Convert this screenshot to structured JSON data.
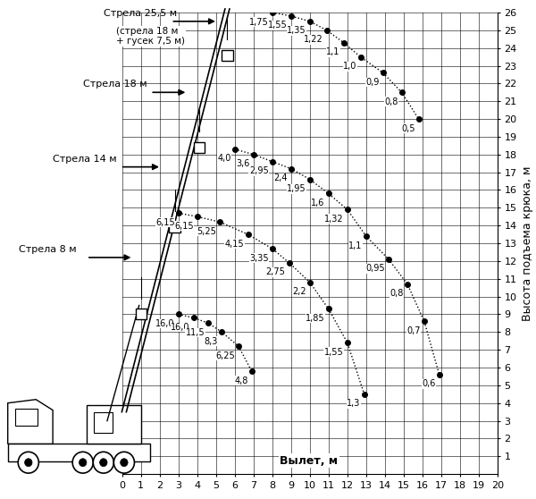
{
  "chart_data": {
    "type": "line",
    "x_label": "Вылет, м",
    "y_label": "Высота подъема крюка, м",
    "xlim": [
      0,
      20
    ],
    "ylim": [
      0,
      26
    ],
    "xticks": [
      0,
      1,
      2,
      3,
      4,
      5,
      6,
      7,
      8,
      9,
      10,
      11,
      12,
      13,
      14,
      15,
      16,
      17,
      18,
      19,
      20
    ],
    "yticks": [
      1,
      2,
      3,
      4,
      5,
      6,
      7,
      8,
      9,
      10,
      11,
      12,
      13,
      14,
      15,
      16,
      17,
      18,
      19,
      20,
      21,
      22,
      23,
      24,
      25,
      26
    ],
    "grid": true,
    "marker": "o",
    "line_style": "dotted",
    "color": "#000000",
    "series": [
      {
        "name": "Стрела 25,5 м",
        "note": "(стрела 18 м\n+ гусек 7,5 м)",
        "x": [
          8.0,
          9.0,
          10.0,
          10.9,
          11.8,
          12.7,
          13.9,
          14.9,
          15.8
        ],
        "values": [
          26.0,
          25.8,
          25.5,
          25.0,
          24.3,
          23.5,
          22.6,
          21.5,
          20.0
        ],
        "load_labels": [
          "1,75",
          "1,55",
          "1,35",
          "1,22",
          "1,1",
          "1,0",
          "0,9",
          "0,8",
          "0,5"
        ]
      },
      {
        "name": "Стрела 18 м",
        "x": [
          6.0,
          7.0,
          8.0,
          9.0,
          10.0,
          11.0,
          12.0,
          13.0,
          14.2,
          15.2,
          16.1,
          16.9
        ],
        "values": [
          18.3,
          18.0,
          17.6,
          17.2,
          16.6,
          15.8,
          14.9,
          13.4,
          12.1,
          10.7,
          8.6,
          5.6
        ],
        "load_labels": [
          "4,0",
          "3,6",
          "2,95",
          "2,4",
          "1,95",
          "1,6",
          "1,32",
          "1,1",
          "0,95",
          "0,8",
          "0,7",
          "0,6"
        ]
      },
      {
        "name": "Стрела 14 м",
        "x": [
          3.0,
          4.0,
          5.2,
          6.7,
          8.0,
          8.9,
          10.0,
          11.0,
          12.0,
          12.9
        ],
        "values": [
          14.7,
          14.5,
          14.2,
          13.5,
          12.7,
          11.9,
          10.8,
          9.3,
          7.4,
          4.5
        ],
        "load_labels": [
          "6,15",
          "6,15",
          "5,25",
          "4,15",
          "3,35",
          "2,75",
          "2,2",
          "1,85",
          "1,55",
          "1,3"
        ]
      },
      {
        "name": "Стрела 8 м",
        "x": [
          3.0,
          3.8,
          4.6,
          5.3,
          6.2,
          6.9
        ],
        "values": [
          9.0,
          8.8,
          8.5,
          8.0,
          7.2,
          5.8
        ],
        "load_labels": [
          "16,0",
          "16,0",
          "11,5",
          "8,3",
          "6,25",
          "4,8"
        ]
      }
    ]
  }
}
